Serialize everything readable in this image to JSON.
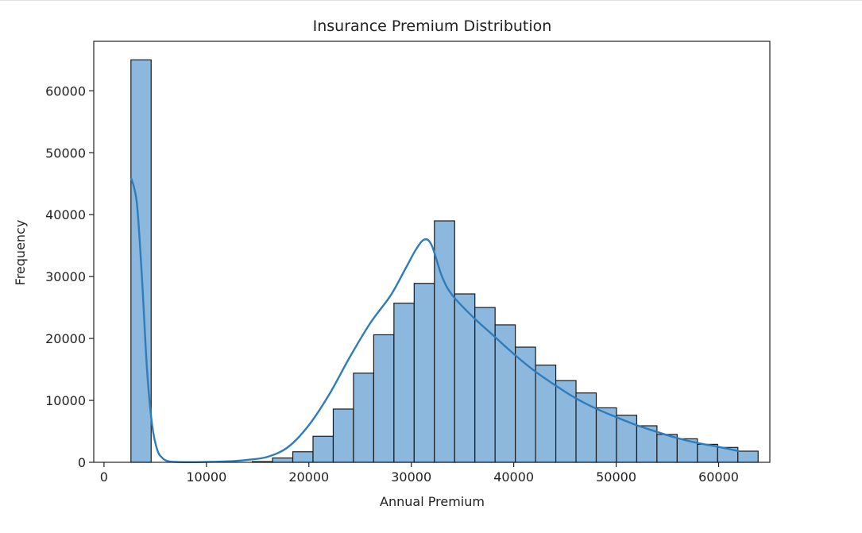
{
  "chart_data": {
    "type": "bar",
    "title": "Insurance Premium Distribution",
    "xlabel": "Annual Premium",
    "ylabel": "Frequency",
    "xlim": [
      -1000,
      65000
    ],
    "ylim": [
      0,
      68000
    ],
    "xticks": [
      0,
      10000,
      20000,
      30000,
      40000,
      50000,
      60000
    ],
    "yticks": [
      0,
      10000,
      20000,
      30000,
      40000,
      50000,
      60000
    ],
    "bins": {
      "start": 2630,
      "width": 1975,
      "counts": [
        65000,
        0,
        0,
        0,
        0,
        0,
        120,
        700,
        1700,
        4200,
        8600,
        14400,
        20600,
        25700,
        28900,
        39000,
        27200,
        25000,
        22200,
        18600,
        15700,
        13200,
        11200,
        8800,
        7600,
        5900,
        4500,
        3800,
        2900,
        2400,
        1800
      ]
    },
    "kde": {
      "x": [
        2630,
        3200,
        3700,
        4200,
        4700,
        5200,
        5700,
        6200,
        7000,
        9000,
        12000,
        14000,
        16000,
        18000,
        20000,
        22000,
        24000,
        26000,
        28000,
        29500,
        30500,
        31300,
        32000,
        33000,
        34000,
        36000,
        38000,
        40000,
        42000,
        44000,
        46000,
        48000,
        50000,
        52000,
        54000,
        56000,
        58000,
        60000,
        62000
      ],
      "y": [
        46000,
        42000,
        30000,
        15000,
        6000,
        2000,
        700,
        200,
        50,
        30,
        150,
        400,
        900,
        2500,
        6000,
        11000,
        17000,
        22500,
        27000,
        31500,
        34500,
        36000,
        35000,
        30000,
        27000,
        23500,
        20500,
        17500,
        14800,
        12500,
        10400,
        8700,
        7300,
        6000,
        4900,
        3900,
        3100,
        2500,
        1800
      ]
    },
    "bar_color": "#8bb8dc",
    "edge_color": "#1a1a1a",
    "line_color": "#2f7cbc",
    "grid": false,
    "legend": "none"
  }
}
